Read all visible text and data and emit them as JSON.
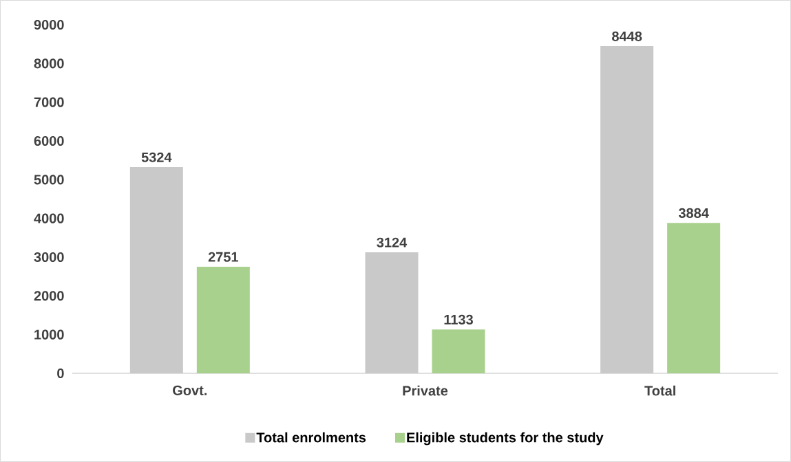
{
  "chart_data": {
    "type": "bar",
    "categories": [
      "Govt.",
      "Private",
      "Total"
    ],
    "series": [
      {
        "name": "Total enrolments",
        "color": "#c9c9c9",
        "values": [
          5324,
          3124,
          8448
        ]
      },
      {
        "name": "Eligible students for the study",
        "color": "#a9d18e",
        "values": [
          2751,
          1133,
          3884
        ]
      }
    ],
    "ylim": [
      0,
      9000
    ],
    "yticks": [
      0,
      1000,
      2000,
      3000,
      4000,
      5000,
      6000,
      7000,
      8000,
      9000
    ],
    "data_labels": true,
    "legend": "bottom",
    "grid": false
  }
}
